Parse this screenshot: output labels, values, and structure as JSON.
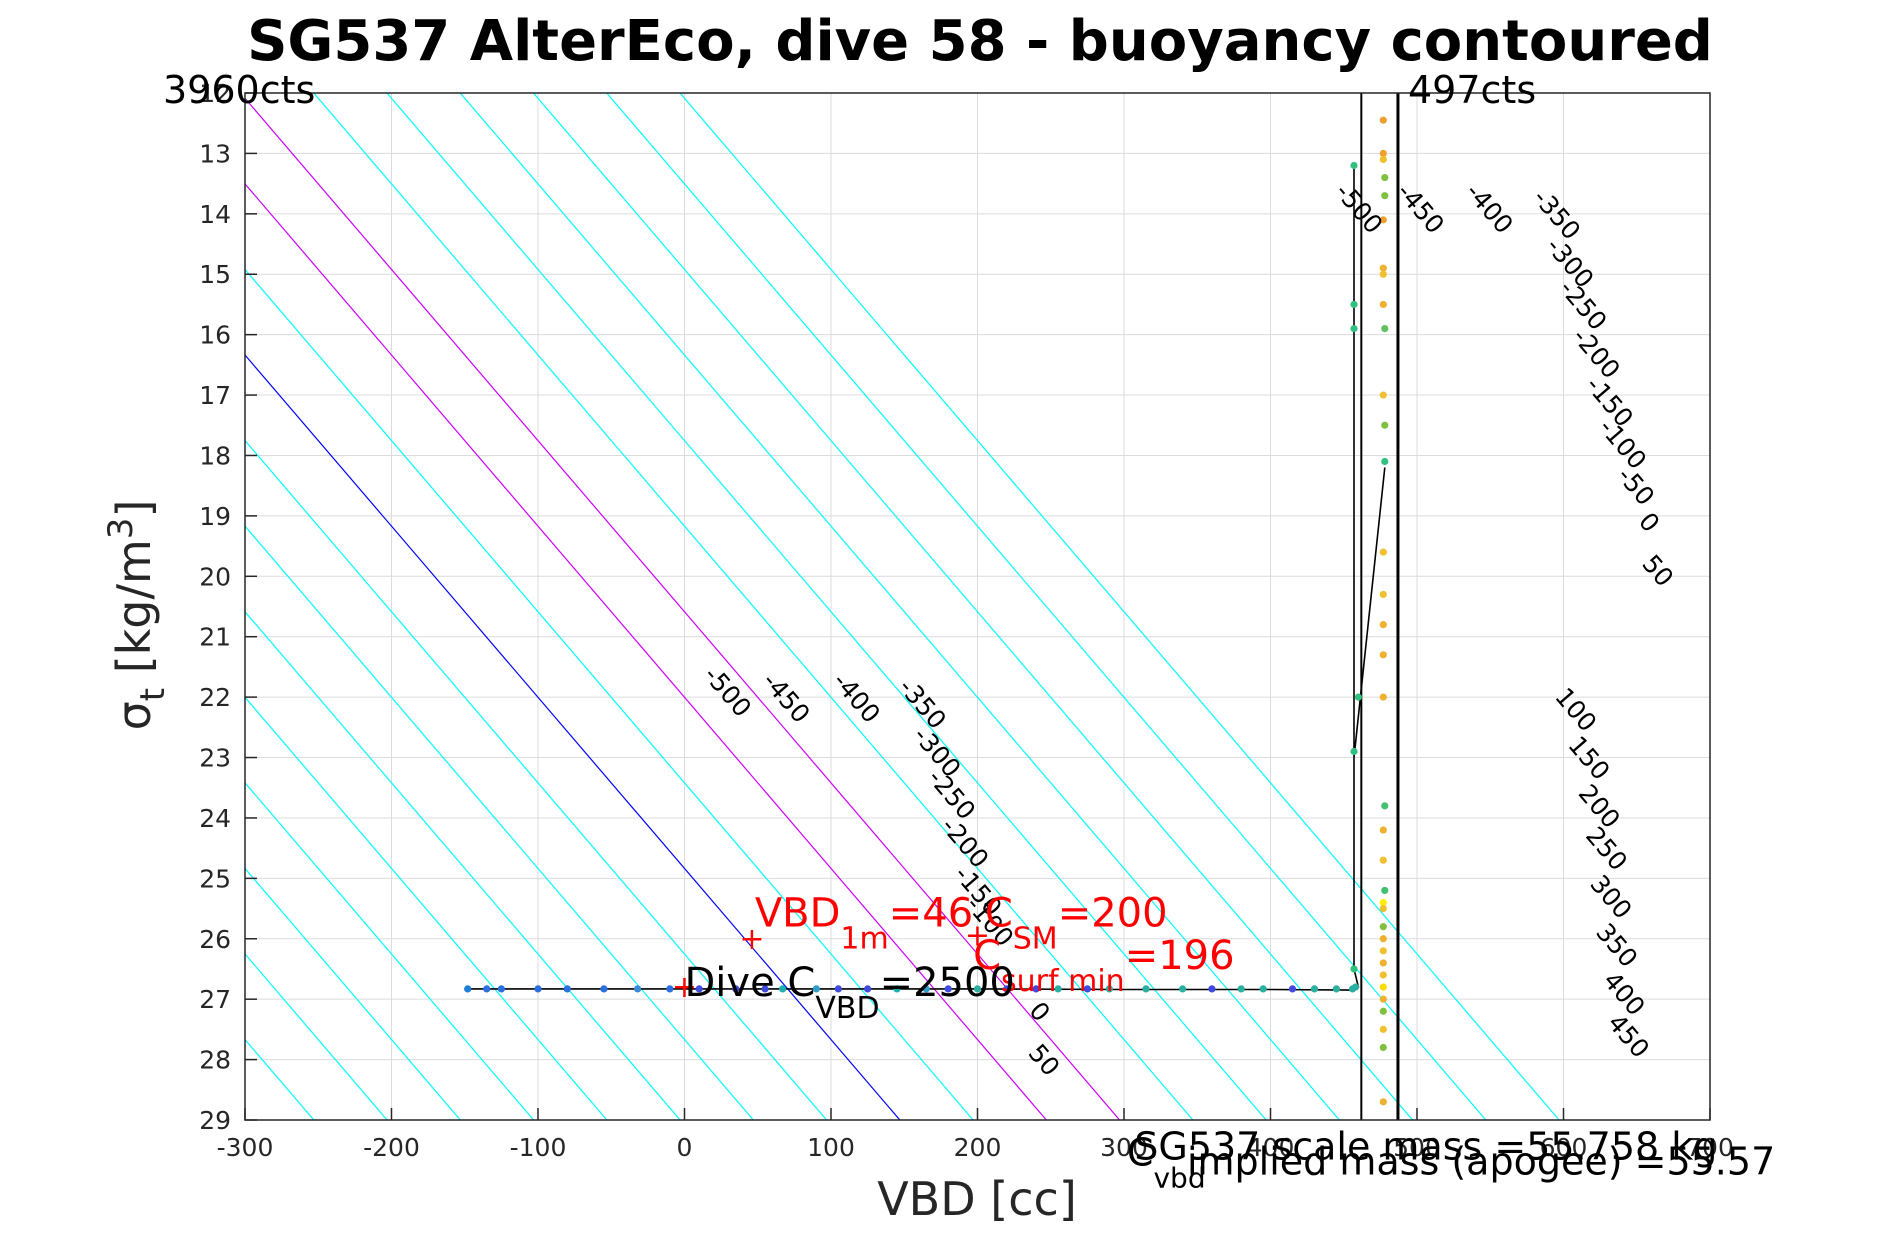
{
  "chart_data": {
    "type": "scatter",
    "title": "SG537 AlterEco, dive 58 - buoyancy contoured",
    "xlabel": "VBD [cc]",
    "ylabel": "σ_t [kg/m^3]",
    "ylabel_parts": {
      "sym": "σ",
      "sub": "t",
      "main": " [kg/m",
      "sup": "3",
      "end": "]"
    },
    "xlim": [
      -300,
      700
    ],
    "ylim": [
      12,
      29
    ],
    "y_reversed": true,
    "grid": true,
    "x_ticks": [
      -300,
      -200,
      -100,
      0,
      100,
      200,
      300,
      400,
      500,
      600,
      700
    ],
    "x_tick_labels": [
      "-300",
      "-200",
      "-100",
      "0",
      "100",
      "200",
      "300",
      "400",
      "500",
      "600",
      "700"
    ],
    "y_ticks": [
      12,
      13,
      14,
      15,
      16,
      17,
      18,
      19,
      20,
      21,
      22,
      23,
      24,
      25,
      26,
      27,
      28,
      29
    ],
    "y_tick_labels": [
      "12",
      "13",
      "14",
      "15",
      "16",
      "17",
      "18",
      "19",
      "20",
      "21",
      "22",
      "23",
      "24",
      "25",
      "26",
      "27",
      "28",
      "29"
    ],
    "corner_labels": {
      "left": "3960cts",
      "right": "497cts"
    },
    "vbd_min_line": 462,
    "vbd_max_line": 487,
    "contours": {
      "origin_x": 147,
      "origin_y": 29,
      "cc_per_sigma": 35.3,
      "levels": [
        -500,
        -450,
        -400,
        -350,
        -300,
        -250,
        -200,
        -150,
        -100,
        -50,
        0,
        50,
        100,
        150,
        200,
        250,
        300,
        350,
        400,
        450
      ],
      "color_negative": "#00ffff",
      "color_zero": "#0000ff",
      "color_positive": "#00ffff",
      "highlight_levels": [
        100,
        150
      ],
      "color_highlight": "#cc00ff",
      "left_labels": [
        {
          "text": "-500",
          "x": 25,
          "y": 22.0
        },
        {
          "text": "-450",
          "x": 65,
          "y": 22.1
        },
        {
          "text": "-400",
          "x": 113,
          "y": 22.1
        },
        {
          "text": "-350",
          "x": 158,
          "y": 22.2
        },
        {
          "text": "-300",
          "x": 168,
          "y": 23.0
        },
        {
          "text": "-250",
          "x": 178,
          "y": 23.7
        },
        {
          "text": "-200",
          "x": 187,
          "y": 24.5
        },
        {
          "text": "-150",
          "x": 196,
          "y": 25.3
        },
        {
          "text": "-100",
          "x": 204,
          "y": 25.8
        },
        {
          "text": "0",
          "x": 238,
          "y": 27.3
        },
        {
          "text": "50",
          "x": 241,
          "y": 28.1
        }
      ],
      "right_labels": [
        {
          "text": "-500",
          "x": 456,
          "y": 14.0
        },
        {
          "text": "-450",
          "x": 498,
          "y": 14.0
        },
        {
          "text": "-400",
          "x": 545,
          "y": 14.0
        },
        {
          "text": "-350",
          "x": 591,
          "y": 14.1
        },
        {
          "text": "-300",
          "x": 600,
          "y": 14.9
        },
        {
          "text": "-250",
          "x": 609,
          "y": 15.6
        },
        {
          "text": "-200",
          "x": 618,
          "y": 16.4
        },
        {
          "text": "-150",
          "x": 627,
          "y": 17.2
        },
        {
          "text": "-100",
          "x": 636,
          "y": 17.9
        },
        {
          "text": "-50",
          "x": 645,
          "y": 18.6
        },
        {
          "text": "0",
          "x": 654,
          "y": 19.2
        },
        {
          "text": "50",
          "x": 660,
          "y": 20.0
        },
        {
          "text": "100",
          "x": 604,
          "y": 22.3
        },
        {
          "text": "150",
          "x": 613,
          "y": 23.1
        },
        {
          "text": "200",
          "x": 620,
          "y": 23.9
        },
        {
          "text": "250",
          "x": 625,
          "y": 24.6
        },
        {
          "text": "300",
          "x": 628,
          "y": 25.4
        },
        {
          "text": "350",
          "x": 632,
          "y": 26.2
        },
        {
          "text": "400",
          "x": 637,
          "y": 27.0
        },
        {
          "text": "450",
          "x": 640,
          "y": 27.7
        }
      ]
    },
    "annotations": {
      "vbd1m": {
        "pre": "VBD",
        "sub": "1m",
        "post": "=46",
        "x": 48,
        "y": 25.8,
        "color": "#ff0000"
      },
      "csm": {
        "pre": "C",
        "sub": "SM",
        "post": "=200",
        "x": 205,
        "y": 25.8,
        "color": "#ff0000"
      },
      "csurf": {
        "pre": "C",
        "sub": "surf min",
        "post": "=196",
        "x": 197,
        "y": 26.5,
        "color": "#ff0000"
      },
      "divec": {
        "pre": "Dive C",
        "sub": "VBD",
        "post": "=2500",
        "x": 0,
        "y": 26.95,
        "color": "#000000"
      },
      "cvbd": {
        "pre": "C",
        "sub": "vbd",
        "post": "",
        "x": 302,
        "y": 29.75,
        "color": "#000000"
      },
      "scale_mass": {
        "text": "SG537 scale mass =55.758 kg",
        "x": 307,
        "y": 29.65,
        "color": "#000000"
      },
      "implied_mass": {
        "text": "implied mass (apogee) =55.57",
        "x": 343,
        "y": 29.9,
        "color": "#000000"
      }
    },
    "markers": [
      {
        "label": "+",
        "x": 46,
        "y": 26.0,
        "color": "#ff0000"
      },
      {
        "label": "+",
        "x": 0,
        "y": 26.8,
        "color": "#ff0000"
      },
      {
        "label": "+",
        "x": 200,
        "y": 25.95,
        "color": "#ff0000"
      }
    ],
    "series": [
      {
        "type": "line",
        "color": "#000000",
        "points": [
          [
            -150,
            26.83
          ],
          [
            -100,
            26.83
          ],
          [
            0,
            26.83
          ],
          [
            100,
            26.83
          ],
          [
            200,
            26.83
          ],
          [
            300,
            26.84
          ],
          [
            400,
            26.84
          ],
          [
            455,
            26.85
          ],
          [
            460,
            26.8
          ],
          [
            457,
            26.5
          ],
          [
            457,
            22.9
          ],
          [
            457,
            13.2
          ],
          [
            457,
            15.5
          ],
          [
            457,
            21.1
          ],
          [
            457,
            23.0
          ],
          [
            478,
            18.2
          ]
        ]
      },
      {
        "type": "scatter",
        "points": [
          [
            -148,
            26.83,
            "#1a7fd9"
          ],
          [
            -135,
            26.83,
            "#2a70e0"
          ],
          [
            -125,
            26.83,
            "#2a70e0"
          ],
          [
            -100,
            26.83,
            "#2a70e0"
          ],
          [
            -80,
            26.83,
            "#2a70e0"
          ],
          [
            -55,
            26.83,
            "#2a70e0"
          ],
          [
            -32,
            26.83,
            "#3a8ad8"
          ],
          [
            -10,
            26.83,
            "#2a70e0"
          ],
          [
            10,
            26.83,
            "#3f4ae0"
          ],
          [
            35,
            26.83,
            "#3f4ae0"
          ],
          [
            55,
            26.83,
            "#3f4ae0"
          ],
          [
            67,
            26.83,
            "#1bb0b0"
          ],
          [
            90,
            26.83,
            "#2f9fc9"
          ],
          [
            105,
            26.83,
            "#3f4ae0"
          ],
          [
            125,
            26.83,
            "#3f4ae0"
          ],
          [
            145,
            26.83,
            "#1bb0b0"
          ],
          [
            165,
            26.83,
            "#2f9fc9"
          ],
          [
            180,
            26.83,
            "#3f4ae0"
          ],
          [
            200,
            26.83,
            "#2ab0a0"
          ],
          [
            220,
            26.83,
            "#3f4ae0"
          ],
          [
            240,
            26.83,
            "#3f4ae0"
          ],
          [
            255,
            26.83,
            "#2ab0a0"
          ],
          [
            275,
            26.83,
            "#3f4ae0"
          ],
          [
            290,
            26.83,
            "#2ab0a0"
          ],
          [
            315,
            26.83,
            "#2ab0a0"
          ],
          [
            340,
            26.83,
            "#2ab0a0"
          ],
          [
            360,
            26.83,
            "#3f4ae0"
          ],
          [
            380,
            26.83,
            "#2ab0a0"
          ],
          [
            395,
            26.83,
            "#2ab0a0"
          ],
          [
            415,
            26.83,
            "#3f4ae0"
          ],
          [
            430,
            26.83,
            "#2ab0a0"
          ],
          [
            445,
            26.83,
            "#2ab0a0"
          ],
          [
            456,
            26.83,
            "#2ab0a0"
          ],
          [
            458,
            26.8,
            "#2ab0a0"
          ],
          [
            457,
            26.5,
            "#30c080"
          ],
          [
            457,
            22.9,
            "#30c080"
          ],
          [
            457,
            15.5,
            "#30c080"
          ],
          [
            457,
            15.9,
            "#30c080"
          ],
          [
            457,
            13.2,
            "#30c080"
          ],
          [
            460,
            22.0,
            "#30c080"
          ],
          [
            477,
            12.45,
            "#f0a030"
          ],
          [
            477,
            13.0,
            "#f0a030"
          ],
          [
            477,
            13.1,
            "#f0c030"
          ],
          [
            478,
            13.4,
            "#80c040"
          ],
          [
            478,
            13.7,
            "#80c040"
          ],
          [
            477,
            14.1,
            "#f0a030"
          ],
          [
            477,
            14.9,
            "#f0b030"
          ],
          [
            477,
            15.0,
            "#f0c030"
          ],
          [
            477,
            15.5,
            "#f0b030"
          ],
          [
            478,
            15.9,
            "#60c060"
          ],
          [
            477,
            17.0,
            "#f0c030"
          ],
          [
            478,
            17.5,
            "#80c040"
          ],
          [
            478,
            18.1,
            "#30c080"
          ],
          [
            477,
            19.6,
            "#f0c030"
          ],
          [
            477,
            20.3,
            "#f0c030"
          ],
          [
            477,
            20.8,
            "#f0b030"
          ],
          [
            477,
            21.3,
            "#f0b030"
          ],
          [
            477,
            22.0,
            "#f0b030"
          ],
          [
            478,
            23.8,
            "#40c070"
          ],
          [
            477,
            24.2,
            "#f0b030"
          ],
          [
            477,
            24.7,
            "#f0c030"
          ],
          [
            478,
            25.2,
            "#40c070"
          ],
          [
            477,
            25.4,
            "#ffee00"
          ],
          [
            477,
            25.5,
            "#f0c030"
          ],
          [
            477,
            25.8,
            "#80c040"
          ],
          [
            477,
            26.0,
            "#f0b030"
          ],
          [
            477,
            26.2,
            "#f0c030"
          ],
          [
            477,
            26.4,
            "#f0b030"
          ],
          [
            477,
            26.6,
            "#f0c030"
          ],
          [
            477,
            26.8,
            "#ffdd00"
          ],
          [
            477,
            27.0,
            "#f0b030"
          ],
          [
            477,
            27.2,
            "#80c040"
          ],
          [
            477,
            27.5,
            "#f0c030"
          ],
          [
            477,
            27.8,
            "#80c040"
          ],
          [
            477,
            28.7,
            "#f0b030"
          ]
        ]
      }
    ]
  }
}
